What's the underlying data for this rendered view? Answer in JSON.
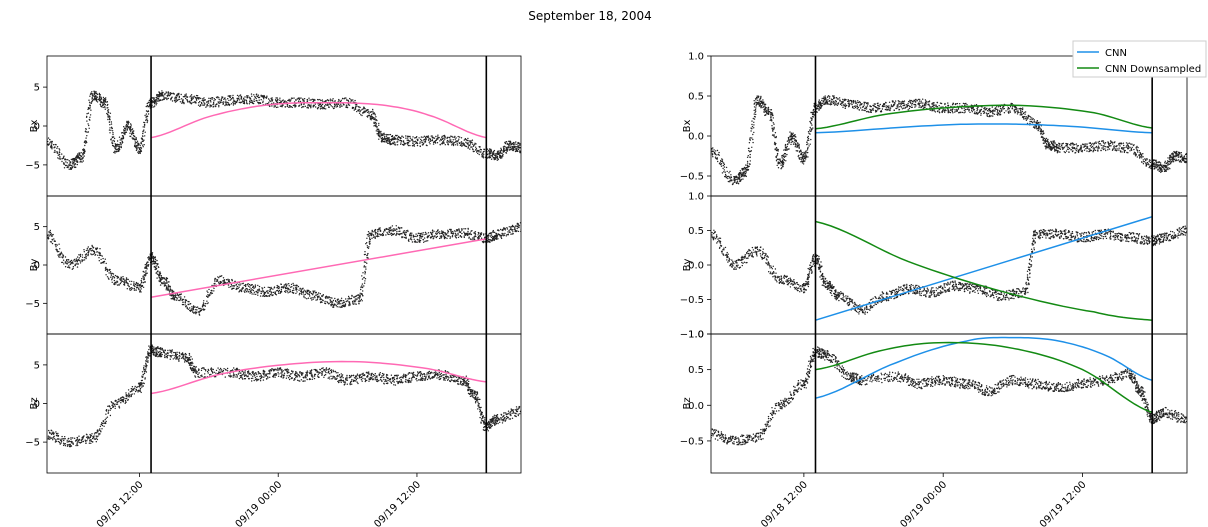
{
  "title": "September 18, 2004",
  "colors": {
    "obs": "#222222",
    "model": "#ff69b4",
    "cnn": "#1e90e8",
    "cnn_down": "#138a13",
    "boundary": "#000000"
  },
  "chart_data": [
    {
      "type": "scatter",
      "panel": "left",
      "time_ticks": [
        "09/18 12:00",
        "09/19 00:00",
        "09/19 12:00"
      ],
      "xrange": [
        "09/18 04:00",
        "09/19 21:00"
      ],
      "boundaries": [
        "09/18 13:00",
        "09/19 18:00"
      ],
      "subplots": [
        {
          "ylabel": "Bx",
          "ylim": [
            -9,
            9
          ],
          "yticks": [
            -5,
            0,
            5
          ],
          "obs": {
            "x": [
              "09/18 04:00",
              "09/18 06:00",
              "09/18 07:00",
              "09/18 08:00",
              "09/18 09:00",
              "09/18 10:00",
              "09/18 11:00",
              "09/18 12:00",
              "09/18 13:00",
              "09/18 14:00",
              "09/18 16:00",
              "09/18 18:00",
              "09/18 20:00",
              "09/18 22:00",
              "09/19 00:00",
              "09/19 02:00",
              "09/19 04:00",
              "09/19 06:00",
              "09/19 08:00",
              "09/19 09:00",
              "09/19 10:00",
              "09/19 12:00",
              "09/19 14:00",
              "09/19 16:00",
              "09/19 18:00",
              "09/19 19:00",
              "09/19 20:00",
              "09/19 21:00"
            ],
            "y": [
              -2,
              -5,
              -4,
              4,
              3,
              -3,
              0,
              -3,
              3,
              4,
              3.5,
              3,
              3.3,
              3.5,
              3,
              3,
              2.8,
              3,
              1.5,
              -1.5,
              -1.8,
              -2,
              -1.8,
              -2,
              -3.5,
              -3.8,
              -2.5,
              -2.8
            ]
          },
          "model": {
            "name": "",
            "x": [
              "09/18 13:00",
              "09/18 18:00",
              "09/18 23:00",
              "09/19 04:00",
              "09/19 09:00",
              "09/19 13:00",
              "09/19 18:00"
            ],
            "y": [
              -1.5,
              1.2,
              2.7,
              3,
              2.7,
              1.4,
              -1.5
            ]
          }
        },
        {
          "ylabel": "By",
          "ylim": [
            -9,
            9
          ],
          "yticks": [
            -5,
            0,
            5
          ],
          "obs": {
            "x": [
              "09/18 04:00",
              "09/18 06:00",
              "09/18 08:00",
              "09/18 10:00",
              "09/18 12:00",
              "09/18 13:00",
              "09/18 14:00",
              "09/18 15:00",
              "09/18 17:00",
              "09/18 19:00",
              "09/18 21:00",
              "09/18 23:00",
              "09/19 01:00",
              "09/19 03:00",
              "09/19 05:00",
              "09/19 07:00",
              "09/19 08:00",
              "09/19 10:00",
              "09/19 12:00",
              "09/19 14:00",
              "09/19 16:00",
              "09/19 18:00",
              "09/19 19:00",
              "09/19 21:00"
            ],
            "y": [
              4,
              0,
              2,
              -2,
              -3,
              1,
              -2,
              -4,
              -6,
              -2,
              -3,
              -3.5,
              -3,
              -4,
              -5,
              -4.5,
              4,
              4.5,
              3.5,
              4,
              4.2,
              3.5,
              4,
              5
            ]
          },
          "model": {
            "name": "",
            "x": [
              "09/18 13:00",
              "09/19 18:00"
            ],
            "y": [
              -4.2,
              3.4
            ]
          }
        },
        {
          "ylabel": "Bz",
          "ylim": [
            -9,
            9
          ],
          "yticks": [
            -5,
            0,
            5
          ],
          "obs": {
            "x": [
              "09/18 04:00",
              "09/18 06:00",
              "09/18 08:00",
              "09/18 10:00",
              "09/18 12:00",
              "09/18 13:00",
              "09/18 14:00",
              "09/18 16:00",
              "09/18 17:00",
              "09/18 20:00",
              "09/18 22:00",
              "09/19 00:00",
              "09/19 02:00",
              "09/19 04:00",
              "09/19 06:00",
              "09/19 08:00",
              "09/19 10:00",
              "09/19 12:00",
              "09/19 14:00",
              "09/19 16:00",
              "09/19 17:00",
              "09/19 18:00",
              "09/19 19:00",
              "09/19 21:00"
            ],
            "y": [
              -4,
              -5,
              -4.5,
              0,
              2,
              7,
              6.5,
              6,
              4,
              4,
              3.5,
              4,
              3.5,
              4,
              3,
              3.5,
              3,
              3.5,
              3.7,
              3,
              1,
              -3,
              -2,
              -1
            ]
          },
          "model": {
            "name": "",
            "x": [
              "09/18 13:00",
              "09/18 19:00",
              "09/19 01:00",
              "09/19 07:00",
              "09/19 13:00",
              "09/19 18:00"
            ],
            "y": [
              1.3,
              3.8,
              5.1,
              5.4,
              4.5,
              2.8
            ]
          }
        }
      ]
    },
    {
      "type": "scatter",
      "panel": "right",
      "time_ticks": [
        "09/18 12:00",
        "09/19 00:00",
        "09/19 12:00"
      ],
      "xrange": [
        "09/18 04:00",
        "09/19 21:00"
      ],
      "boundaries": [
        "09/18 13:00",
        "09/19 18:00"
      ],
      "legend": {
        "position": "top-right",
        "entries": [
          "CNN",
          "CNN Downsampled"
        ]
      },
      "subplots": [
        {
          "ylabel": "Bx",
          "ylim": [
            -0.75,
            1.0
          ],
          "yticks": [
            -0.5,
            0.0,
            0.5,
            1.0
          ],
          "yticklabels": [
            "−0.5",
            "0.0",
            "0.5",
            "1.0"
          ],
          "obs": {
            "x": [
              "09/18 04:00",
              "09/18 06:00",
              "09/18 07:00",
              "09/18 08:00",
              "09/18 09:00",
              "09/18 10:00",
              "09/18 11:00",
              "09/18 12:00",
              "09/18 13:00",
              "09/18 14:00",
              "09/18 16:00",
              "09/18 18:00",
              "09/18 20:00",
              "09/18 22:00",
              "09/19 00:00",
              "09/19 02:00",
              "09/19 04:00",
              "09/19 06:00",
              "09/19 08:00",
              "09/19 09:00",
              "09/19 10:00",
              "09/19 12:00",
              "09/19 14:00",
              "09/19 16:00",
              "09/19 18:00",
              "09/19 19:00",
              "09/19 20:00",
              "09/19 21:00"
            ],
            "y": [
              -0.2,
              -0.55,
              -0.45,
              0.45,
              0.3,
              -0.35,
              0,
              -0.3,
              0.35,
              0.45,
              0.4,
              0.35,
              0.38,
              0.4,
              0.35,
              0.35,
              0.3,
              0.35,
              0.15,
              -0.1,
              -0.15,
              -0.15,
              -0.12,
              -0.15,
              -0.35,
              -0.4,
              -0.25,
              -0.28
            ]
          },
          "cnn": {
            "x": [
              "09/18 13:00",
              "09/18 23:00",
              "09/19 05:00",
              "09/19 11:00",
              "09/19 18:00"
            ],
            "y": [
              0.04,
              0.13,
              0.15,
              0.12,
              0.04
            ]
          },
          "cnn_down": {
            "x": [
              "09/18 13:00",
              "09/18 19:00",
              "09/19 01:00",
              "09/19 07:00",
              "09/19 13:00",
              "09/19 18:00"
            ],
            "y": [
              0.09,
              0.27,
              0.36,
              0.38,
              0.29,
              0.1
            ]
          }
        },
        {
          "ylabel": "By",
          "ylim": [
            -1.0,
            1.0
          ],
          "yticks": [
            -1.0,
            -0.5,
            0.0,
            0.5,
            1.0
          ],
          "yticklabels": [
            "−1.0",
            "−0.5",
            "0.0",
            "0.5",
            "1.0"
          ],
          "obs": {
            "x": [
              "09/18 04:00",
              "09/18 06:00",
              "09/18 08:00",
              "09/18 10:00",
              "09/18 12:00",
              "09/18 13:00",
              "09/18 14:00",
              "09/18 15:00",
              "09/18 17:00",
              "09/18 19:00",
              "09/18 21:00",
              "09/18 23:00",
              "09/19 01:00",
              "09/19 03:00",
              "09/19 05:00",
              "09/19 07:00",
              "09/19 08:00",
              "09/19 10:00",
              "09/19 12:00",
              "09/19 14:00",
              "09/19 16:00",
              "09/19 18:00",
              "09/19 19:00",
              "09/19 21:00"
            ],
            "y": [
              0.45,
              0,
              0.2,
              -0.2,
              -0.35,
              0.1,
              -0.3,
              -0.45,
              -0.65,
              -0.45,
              -0.35,
              -0.4,
              -0.3,
              -0.35,
              -0.45,
              -0.4,
              0.45,
              0.45,
              0.4,
              0.45,
              0.4,
              0.35,
              0.4,
              0.5
            ]
          },
          "cnn": {
            "x": [
              "09/18 13:00",
              "09/19 18:00"
            ],
            "y": [
              -0.8,
              0.7
            ]
          },
          "cnn_down": {
            "x": [
              "09/18 13:00",
              "09/18 21:00",
              "09/19 05:00",
              "09/19 13:00",
              "09/19 18:00"
            ],
            "y": [
              0.63,
              0.05,
              -0.38,
              -0.68,
              -0.8
            ]
          }
        },
        {
          "ylabel": "Bz",
          "ylim": [
            -0.95,
            1.0
          ],
          "yticks": [
            -0.5,
            0.0,
            0.5,
            1.0
          ],
          "yticklabels": [
            "−0.5",
            "0.0",
            "0.5",
            "1.0"
          ],
          "obs": {
            "x": [
              "09/18 04:00",
              "09/18 06:00",
              "09/18 08:00",
              "09/18 10:00",
              "09/18 12:00",
              "09/18 13:00",
              "09/18 14:00",
              "09/18 16:00",
              "09/18 17:00",
              "09/18 20:00",
              "09/18 22:00",
              "09/19 00:00",
              "09/19 02:00",
              "09/19 04:00",
              "09/19 06:00",
              "09/19 08:00",
              "09/19 10:00",
              "09/19 12:00",
              "09/19 14:00",
              "09/19 16:00",
              "09/19 17:00",
              "09/19 18:00",
              "09/19 19:00",
              "09/19 21:00"
            ],
            "y": [
              -0.4,
              -0.5,
              -0.45,
              0,
              0.3,
              0.75,
              0.7,
              0.4,
              0.35,
              0.4,
              0.3,
              0.35,
              0.3,
              0.2,
              0.35,
              0.3,
              0.25,
              0.3,
              0.35,
              0.45,
              0.2,
              -0.2,
              -0.1,
              -0.2
            ]
          },
          "cnn": {
            "x": [
              "09/18 13:00",
              "09/18 20:00",
              "09/19 02:00",
              "09/19 06:00",
              "09/19 10:00",
              "09/19 14:00",
              "09/19 18:00"
            ],
            "y": [
              0.1,
              0.6,
              0.9,
              0.95,
              0.9,
              0.7,
              0.35
            ]
          },
          "cnn_down": {
            "x": [
              "09/18 13:00",
              "09/18 19:00",
              "09/19 00:00",
              "09/19 06:00",
              "09/19 12:00",
              "09/19 18:00"
            ],
            "y": [
              0.5,
              0.78,
              0.88,
              0.8,
              0.5,
              -0.1
            ]
          }
        }
      ]
    }
  ]
}
